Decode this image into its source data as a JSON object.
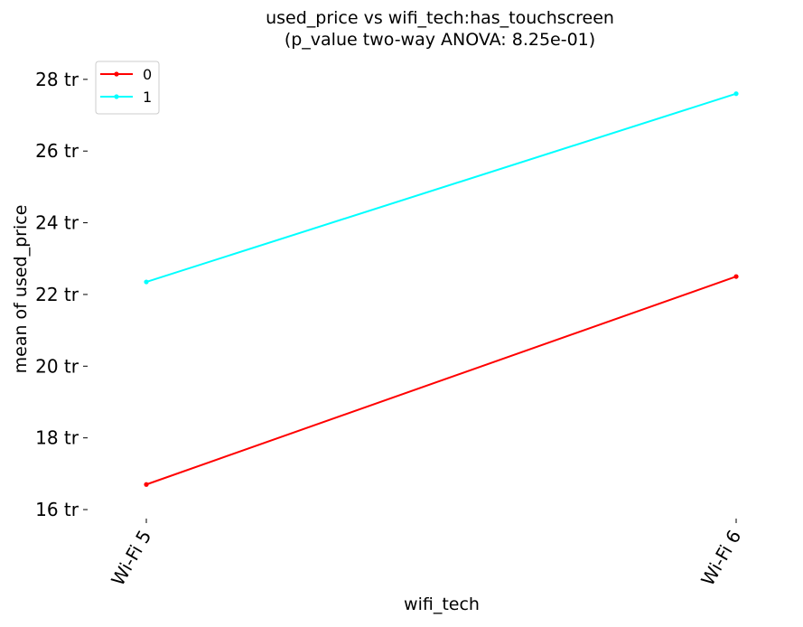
{
  "chart_data": {
    "type": "line",
    "title": "used_price vs wifi_tech:has_touchscreen",
    "subtitle": "(p_value two-way ANOVA: 8.25e-01)",
    "xlabel": "wifi_tech",
    "ylabel": "mean of used_price",
    "categories": [
      "Wi-Fi 5",
      "Wi-Fi 6"
    ],
    "y_unit_suffix": "tr",
    "ylim": [
      15.9,
      28.5
    ],
    "yticks": [
      {
        "value": 16,
        "label": "16 tr"
      },
      {
        "value": 18,
        "label": "18 tr"
      },
      {
        "value": 20,
        "label": "20 tr"
      },
      {
        "value": 22,
        "label": "22 tr"
      },
      {
        "value": 24,
        "label": "24 tr"
      },
      {
        "value": 26,
        "label": "26 tr"
      },
      {
        "value": 28,
        "label": "28 tr"
      }
    ],
    "series": [
      {
        "name": "0",
        "color": "#ff0000",
        "values": [
          16.7,
          22.5
        ]
      },
      {
        "name": "1",
        "color": "#00ffff",
        "values": [
          22.35,
          27.6
        ]
      }
    ],
    "legend_position": "top-left",
    "grid": false,
    "x_tick_rotation_deg": -60
  }
}
